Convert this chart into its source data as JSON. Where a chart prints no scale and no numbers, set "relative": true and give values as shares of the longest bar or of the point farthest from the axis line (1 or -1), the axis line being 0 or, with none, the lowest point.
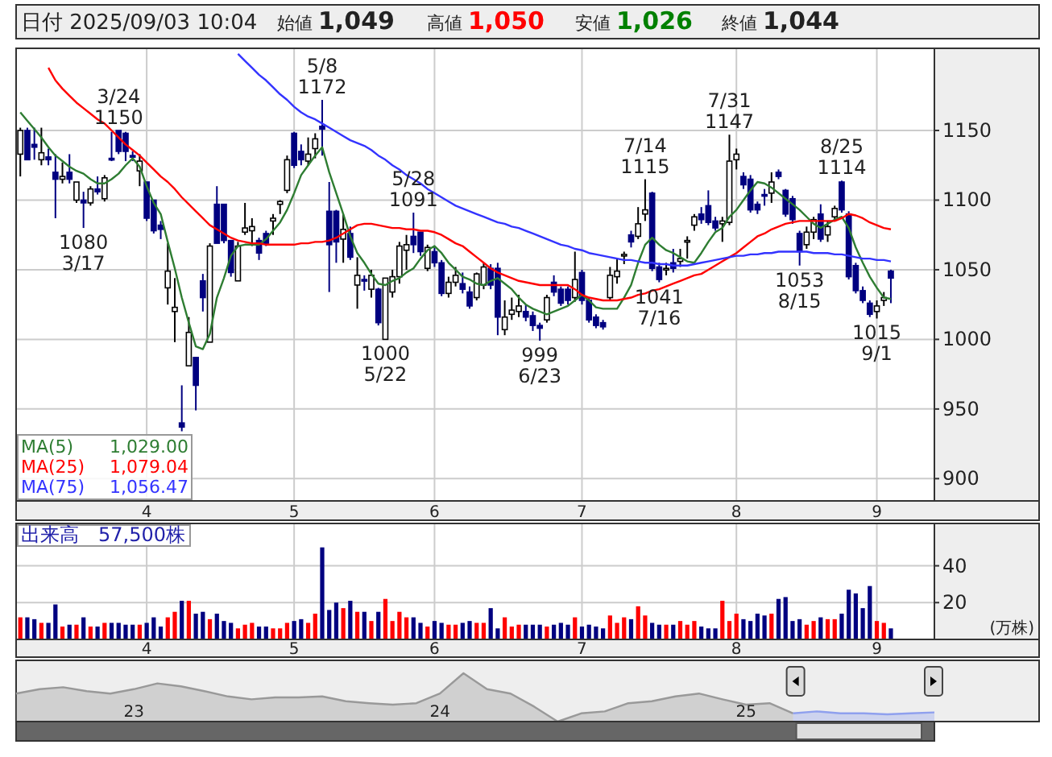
{
  "chart_data": [
    {
      "type": "candlestick",
      "title": "日付 2025/09/03 10:04",
      "grid": true,
      "legend": "bottom left",
      "ylim": [
        884,
        1209
      ],
      "yticks": [
        900,
        950,
        1000,
        1050,
        1100,
        1150
      ],
      "categories": [
        null,
        null,
        null,
        null,
        null,
        null,
        null,
        null,
        null,
        null,
        null,
        null,
        null,
        null,
        null,
        null,
        null,
        null,
        "4",
        null,
        null,
        null,
        null,
        null,
        null,
        null,
        null,
        null,
        null,
        null,
        null,
        null,
        null,
        null,
        null,
        null,
        null,
        null,
        null,
        "5",
        null,
        null,
        null,
        null,
        null,
        null,
        null,
        null,
        null,
        null,
        null,
        null,
        null,
        null,
        null,
        null,
        null,
        null,
        null,
        "6",
        null,
        null,
        null,
        null,
        null,
        null,
        null,
        null,
        null,
        null,
        null,
        null,
        null,
        null,
        null,
        null,
        null,
        null,
        null,
        null,
        "7",
        null,
        null,
        null,
        null,
        null,
        null,
        null,
        null,
        null,
        null,
        null,
        null,
        null,
        null,
        null,
        null,
        null,
        null,
        null,
        null,
        null,
        "8",
        null,
        null,
        null,
        null,
        null,
        null,
        null,
        null,
        null,
        null,
        null,
        null,
        null,
        null,
        null,
        null,
        null,
        null,
        null,
        "9",
        null,
        null
      ],
      "ohlc": [
        [
          1133,
          1152,
          1117,
          1150
        ],
        [
          1150,
          1152,
          1129,
          1129
        ],
        [
          1140,
          1152,
          1129,
          1138
        ],
        [
          1129,
          1152,
          1125,
          1134
        ],
        [
          1131,
          1137,
          1125,
          1129
        ],
        [
          1120,
          1133,
          1087,
          1115
        ],
        [
          1115,
          1127,
          1112,
          1117
        ],
        [
          1120,
          1133,
          1112,
          1115
        ],
        [
          1100,
          1113,
          1098,
          1113
        ],
        [
          1100,
          1106,
          1080,
          1098
        ],
        [
          1098,
          1110,
          1096,
          1108
        ],
        [
          1108,
          1117,
          1104,
          1106
        ],
        [
          1101,
          1118,
          1099,
          1116
        ],
        [
          1130,
          1149,
          1128,
          1129
        ],
        [
          1150,
          1150,
          1133,
          1135
        ],
        [
          1148,
          1149,
          1128,
          1135
        ],
        [
          1132,
          1135,
          1128,
          1131
        ],
        [
          1121,
          1133,
          1110,
          1128
        ],
        [
          1113,
          1113,
          1085,
          1087
        ],
        [
          1100,
          1100,
          1076,
          1078
        ],
        [
          1082,
          1085,
          1072,
          1079
        ],
        [
          1037,
          1069,
          1025,
          1049
        ],
        [
          1020,
          1044,
          998,
          1023
        ],
        [
          940,
          967,
          934,
          937
        ],
        [
          981,
          1016,
          981,
          1005
        ],
        [
          987,
          987,
          949,
          967
        ],
        [
          1042,
          1047,
          1020,
          1030
        ],
        [
          998,
          1069,
          998,
          1067
        ],
        [
          1097,
          1110,
          1069,
          1069
        ],
        [
          1097,
          1097,
          1069,
          1071
        ],
        [
          1071,
          1071,
          1045,
          1048
        ],
        [
          1042,
          1070,
          1042,
          1067
        ],
        [
          1077,
          1098,
          1075,
          1080
        ],
        [
          1078,
          1087,
          1067,
          1081
        ],
        [
          1071,
          1073,
          1057,
          1062
        ],
        [
          1076,
          1078,
          1067,
          1069
        ],
        [
          1085,
          1090,
          1075,
          1087
        ],
        [
          1097,
          1100,
          1090,
          1099
        ],
        [
          1107,
          1132,
          1105,
          1129
        ],
        [
          1148,
          1149,
          1123,
          1125
        ],
        [
          1135,
          1140,
          1125,
          1129
        ],
        [
          1128,
          1145,
          1125,
          1133
        ],
        [
          1137,
          1148,
          1130,
          1144
        ],
        [
          1153,
          1172,
          1132,
          1151
        ],
        [
          1092,
          1113,
          1034,
          1068
        ],
        [
          1092,
          1093,
          1055,
          1070
        ],
        [
          1072,
          1090,
          1055,
          1079
        ],
        [
          1076,
          1081,
          1057,
          1059
        ],
        [
          1039,
          1059,
          1022,
          1046
        ],
        [
          1043,
          1046,
          1035,
          1042
        ],
        [
          1036,
          1050,
          1030,
          1046
        ],
        [
          1036,
          1037,
          1010,
          1012
        ],
        [
          1000,
          1044,
          1000,
          1044
        ],
        [
          1034,
          1050,
          1030,
          1045
        ],
        [
          1045,
          1070,
          1040,
          1067
        ],
        [
          1064,
          1075,
          1050,
          1068
        ],
        [
          1074,
          1091,
          1062,
          1068
        ],
        [
          1077,
          1077,
          1060,
          1063
        ],
        [
          1051,
          1068,
          1049,
          1066
        ],
        [
          1063,
          1066,
          1052,
          1055
        ],
        [
          1055,
          1057,
          1031,
          1033
        ],
        [
          1033,
          1045,
          1030,
          1041
        ],
        [
          1041,
          1052,
          1038,
          1046
        ],
        [
          1040,
          1048,
          1033,
          1036
        ],
        [
          1034,
          1038,
          1022,
          1024
        ],
        [
          1030,
          1048,
          1028,
          1047
        ],
        [
          1039,
          1055,
          1036,
          1052
        ],
        [
          1051,
          1054,
          1036,
          1039
        ],
        [
          1051,
          1055,
          1003,
          1016
        ],
        [
          1007,
          1028,
          1003,
          1016
        ],
        [
          1018,
          1030,
          1014,
          1021
        ],
        [
          1020,
          1032,
          1016,
          1024
        ],
        [
          1020,
          1025,
          1013,
          1016
        ],
        [
          1017,
          1020,
          1006,
          1010
        ],
        [
          1010,
          1012,
          999,
          1008
        ],
        [
          1014,
          1032,
          1012,
          1030
        ],
        [
          1041,
          1046,
          1031,
          1034
        ],
        [
          1036,
          1038,
          1024,
          1026
        ],
        [
          1036,
          1038,
          1025,
          1028
        ],
        [
          1030,
          1063,
          1027,
          1043
        ],
        [
          1048,
          1050,
          1025,
          1028
        ],
        [
          1028,
          1030,
          1012,
          1014
        ],
        [
          1016,
          1018,
          1008,
          1010
        ],
        [
          1012,
          1014,
          1007,
          1009
        ],
        [
          1030,
          1052,
          1028,
          1046
        ],
        [
          1045,
          1058,
          1040,
          1049
        ],
        [
          1060,
          1063,
          1054,
          1061
        ],
        [
          1075,
          1078,
          1066,
          1070
        ],
        [
          1074,
          1095,
          1072,
          1083
        ],
        [
          1090,
          1115,
          1085,
          1093
        ],
        [
          1105,
          1106,
          1049,
          1051
        ],
        [
          1052,
          1055,
          1041,
          1043
        ],
        [
          1050,
          1055,
          1046,
          1051
        ],
        [
          1055,
          1065,
          1048,
          1051
        ],
        [
          1056,
          1065,
          1052,
          1058
        ],
        [
          1070,
          1074,
          1058,
          1071
        ],
        [
          1082,
          1090,
          1078,
          1088
        ],
        [
          1090,
          1095,
          1083,
          1086
        ],
        [
          1096,
          1107,
          1082,
          1084
        ],
        [
          1085,
          1088,
          1078,
          1080
        ],
        [
          1083,
          1088,
          1070,
          1085
        ],
        [
          1084,
          1147,
          1082,
          1128
        ],
        [
          1129,
          1137,
          1122,
          1133
        ],
        [
          1117,
          1120,
          1108,
          1111
        ],
        [
          1115,
          1118,
          1091,
          1093
        ],
        [
          1097,
          1099,
          1090,
          1093
        ],
        [
          1104,
          1108,
          1096,
          1103
        ],
        [
          1105,
          1120,
          1098,
          1113
        ],
        [
          1120,
          1122,
          1115,
          1117
        ],
        [
          1107,
          1108,
          1088,
          1090
        ],
        [
          1101,
          1103,
          1083,
          1086
        ],
        [
          1076,
          1078,
          1053,
          1063
        ],
        [
          1068,
          1081,
          1065,
          1077
        ],
        [
          1077,
          1088,
          1072,
          1086
        ],
        [
          1090,
          1097,
          1070,
          1072
        ],
        [
          1075,
          1085,
          1070,
          1081
        ],
        [
          1088,
          1096,
          1086,
          1094
        ],
        [
          1113,
          1114,
          1091,
          1093
        ],
        [
          1090,
          1092,
          1043,
          1045
        ],
        [
          1053,
          1055,
          1033,
          1035
        ],
        [
          1035,
          1038,
          1026,
          1028
        ],
        [
          1026,
          1028,
          1016,
          1018
        ],
        [
          1020,
          1028,
          1015,
          1024
        ],
        [
          1028,
          1034,
          1024,
          1030
        ],
        [
          1049,
          1050,
          1026,
          1044
        ]
      ],
      "colors": [
        "#ffffff",
        "#000080",
        "#000080",
        "#ffffff",
        "#000080",
        "#000080",
        "#ffffff",
        "#000080",
        "#ffffff",
        "#000080",
        "#ffffff",
        "#000080",
        "#ffffff",
        "#000080",
        "#000080",
        "#000080",
        "#000080",
        "#ffffff",
        "#000080",
        "#000080",
        "#000080",
        "#ffffff",
        "#ffffff",
        "#000080",
        "#ffffff",
        "#000080",
        "#000080",
        "#ffffff",
        "#000080",
        "#000080",
        "#000080",
        "#ffffff",
        "#ffffff",
        "#ffffff",
        "#000080",
        "#000080",
        "#ffffff",
        "#ffffff",
        "#ffffff",
        "#000080",
        "#000080",
        "#ffffff",
        "#ffffff",
        "#000080",
        "#000080",
        "#000080",
        "#ffffff",
        "#000080",
        "#ffffff",
        "#000080",
        "#ffffff",
        "#000080",
        "#ffffff",
        "#ffffff",
        "#ffffff",
        "#ffffff",
        "#000080",
        "#000080",
        "#ffffff",
        "#000080",
        "#000080",
        "#ffffff",
        "#ffffff",
        "#000080",
        "#000080",
        "#ffffff",
        "#ffffff",
        "#000080",
        "#000080",
        "#ffffff",
        "#ffffff",
        "#ffffff",
        "#000080",
        "#000080",
        "#000080",
        "#ffffff",
        "#000080",
        "#000080",
        "#000080",
        "#ffffff",
        "#000080",
        "#000080",
        "#000080",
        "#000080",
        "#ffffff",
        "#ffffff",
        "#ffffff",
        "#000080",
        "#ffffff",
        "#ffffff",
        "#000080",
        "#000080",
        "#ffffff",
        "#000080",
        "#ffffff",
        "#ffffff",
        "#ffffff",
        "#000080",
        "#000080",
        "#000080",
        "#ffffff",
        "#ffffff",
        "#ffffff",
        "#000080",
        "#000080",
        "#000080",
        "#000080",
        "#ffffff",
        "#000080",
        "#000080",
        "#000080",
        "#000080",
        "#ffffff",
        "#ffffff",
        "#000080",
        "#ffffff",
        "#ffffff",
        "#000080",
        "#000080",
        "#000080",
        "#000080",
        "#000080",
        "#ffffff",
        "#ffffff",
        "#000080"
      ],
      "series": [
        {
          "name": "MA(5)",
          "type": "line",
          "color": "#2e7d32",
          "values": [
            1163,
            1157,
            1151,
            1145,
            1138,
            1132,
            1128,
            1124,
            1121,
            1119,
            1115,
            1112,
            1112,
            1115,
            1119,
            1125,
            1130,
            1124,
            1110,
            1098,
            1090,
            1070,
            1051,
            1030,
            1012,
            995,
            993,
            1004,
            1030,
            1044,
            1060,
            1067,
            1068,
            1068,
            1068,
            1072,
            1078,
            1084,
            1093,
            1105,
            1118,
            1125,
            1132,
            1138,
            1120,
            1105,
            1090,
            1074,
            1062,
            1055,
            1047,
            1040,
            1039,
            1042,
            1044,
            1048,
            1051,
            1058,
            1064,
            1067,
            1062,
            1055,
            1050,
            1045,
            1043,
            1040,
            1039,
            1042,
            1044,
            1040,
            1036,
            1030,
            1025,
            1022,
            1020,
            1018,
            1020,
            1022,
            1024,
            1028,
            1032,
            1028,
            1023,
            1022,
            1022,
            1022,
            1030,
            1039,
            1055,
            1068,
            1073,
            1068,
            1064,
            1062,
            1059,
            1056,
            1055,
            1062,
            1070,
            1077,
            1080,
            1088,
            1093,
            1100,
            1107,
            1113,
            1112,
            1109,
            1105,
            1101,
            1097,
            1093,
            1088,
            1083,
            1080,
            1083,
            1086,
            1088,
            1080,
            1066,
            1055,
            1045,
            1037,
            1030,
            1029
          ]
        },
        {
          "name": "MA(25)",
          "type": "line",
          "color": "#ff0000",
          "values": [
            null,
            null,
            null,
            null,
            1195,
            1186,
            1180,
            1175,
            1170,
            1166,
            1162,
            1158,
            1155,
            1150,
            1145,
            1140,
            1136,
            1132,
            1127,
            1122,
            1117,
            1113,
            1108,
            1102,
            1097,
            1092,
            1087,
            1082,
            1079,
            1076,
            1073,
            1071,
            1070,
            1069,
            1069,
            1068,
            1068,
            1068,
            1068,
            1068,
            1069,
            1069,
            1070,
            1070,
            1071,
            1073,
            1076,
            1079,
            1082,
            1083,
            1083,
            1082,
            1081,
            1080,
            1080,
            1079,
            1079,
            1078,
            1078,
            1077,
            1075,
            1072,
            1069,
            1067,
            1063,
            1059,
            1055,
            1051,
            1048,
            1046,
            1044,
            1042,
            1041,
            1040,
            1039,
            1039,
            1039,
            1039,
            1039,
            1036,
            1032,
            1030,
            1029,
            1028,
            1028,
            1028,
            1029,
            1030,
            1032,
            1033,
            1035,
            1036,
            1038,
            1040,
            1042,
            1044,
            1046,
            1047,
            1050,
            1053,
            1056,
            1059,
            1062,
            1066,
            1070,
            1074,
            1076,
            1079,
            1081,
            1083,
            1084,
            1085,
            1085,
            1085,
            1085,
            1085,
            1085,
            1087,
            1090,
            1089,
            1087,
            1084,
            1082,
            1080,
            1079
          ]
        },
        {
          "name": "MA(75)",
          "type": "line",
          "color": "#3333ff",
          "values": [
            null,
            null,
            null,
            null,
            null,
            null,
            null,
            null,
            null,
            null,
            null,
            null,
            null,
            null,
            null,
            null,
            null,
            null,
            null,
            null,
            null,
            null,
            null,
            null,
            null,
            null,
            null,
            null,
            null,
            null,
            null,
            1205,
            1200,
            1195,
            1190,
            1186,
            1181,
            1176,
            1172,
            1167,
            1163,
            1160,
            1158,
            1155,
            1152,
            1149,
            1146,
            1143,
            1141,
            1139,
            1136,
            1132,
            1129,
            1125,
            1122,
            1118,
            1115,
            1112,
            1108,
            1105,
            1102,
            1099,
            1096,
            1094,
            1092,
            1090,
            1088,
            1086,
            1084,
            1083,
            1081,
            1080,
            1078,
            1076,
            1074,
            1072,
            1070,
            1068,
            1067,
            1065,
            1064,
            1062,
            1061,
            1060,
            1059,
            1058,
            1057,
            1057,
            1056,
            1055,
            1055,
            1054,
            1054,
            1053,
            1053,
            1053,
            1054,
            1055,
            1056,
            1057,
            1058,
            1059,
            1060,
            1060,
            1061,
            1061,
            1062,
            1062,
            1063,
            1063,
            1063,
            1063,
            1063,
            1062,
            1062,
            1062,
            1061,
            1061,
            1060,
            1059,
            1058,
            1058,
            1057,
            1057,
            1056
          ]
        }
      ],
      "annotations": [
        "始値 1,049",
        "高値 1,050",
        "安値 1,026",
        "終値 1,044",
        "1,029.00",
        "1,079.04",
        "1,056.47",
        {
          "text": "3/24\n1150",
          "y": 1150
        },
        {
          "text": "1080\n3/17",
          "y": 1080
        },
        {
          "text": "5/8\n1172",
          "y": 1172
        },
        {
          "text": "5/28\n1091",
          "y": 1091
        },
        {
          "text": "1000\n5/22",
          "y": 1000
        },
        {
          "text": "999\n6/23",
          "y": 999
        },
        {
          "text": "7/14\n1115",
          "y": 1115
        },
        {
          "text": "1041\n7/16",
          "y": 1041
        },
        {
          "text": "7/31\n1147",
          "y": 1147
        },
        {
          "text": "1053\n8/15",
          "y": 1053
        },
        {
          "text": "8/25\n1114",
          "y": 1114
        },
        {
          "text": "1015\n9/1",
          "y": 1015
        }
      ]
    },
    {
      "type": "bar",
      "title": "出来高　57,500株",
      "ylabel": "(万株)",
      "grid": true,
      "ylim": [
        0,
        63
      ],
      "yticks": [
        20,
        40
      ],
      "categories": [
        null,
        null,
        null,
        null,
        null,
        null,
        null,
        null,
        null,
        null,
        null,
        null,
        null,
        null,
        null,
        null,
        null,
        null,
        "4",
        null,
        null,
        null,
        null,
        null,
        null,
        null,
        null,
        null,
        null,
        null,
        null,
        null,
        null,
        null,
        null,
        null,
        null,
        null,
        null,
        "5",
        null,
        null,
        null,
        null,
        null,
        null,
        null,
        null,
        null,
        null,
        null,
        null,
        null,
        null,
        null,
        null,
        null,
        null,
        null,
        "6",
        null,
        null,
        null,
        null,
        null,
        null,
        null,
        null,
        null,
        null,
        null,
        null,
        null,
        null,
        null,
        null,
        null,
        null,
        null,
        null,
        "7",
        null,
        null,
        null,
        null,
        null,
        null,
        null,
        null,
        null,
        null,
        null,
        null,
        null,
        null,
        null,
        null,
        null,
        null,
        null,
        null,
        null,
        "8",
        null,
        null,
        null,
        null,
        null,
        null,
        null,
        null,
        null,
        null,
        null,
        null,
        null,
        null,
        null,
        null,
        null,
        null,
        null,
        "9",
        null,
        null
      ],
      "values": [
        12,
        12,
        11,
        9,
        9,
        19,
        7,
        8,
        8,
        12,
        7,
        7,
        9,
        9,
        9,
        8,
        8,
        8,
        9,
        12,
        7,
        12,
        15,
        21,
        21,
        14,
        15,
        11,
        14,
        10,
        9,
        6,
        8,
        9,
        7,
        7,
        6,
        6,
        9,
        10,
        11,
        9,
        14,
        50,
        16,
        20,
        17,
        21,
        15,
        15,
        10,
        15,
        22,
        10,
        15,
        12,
        12,
        9,
        7,
        10,
        9,
        8,
        8,
        9,
        10,
        9,
        9,
        17,
        6,
        12,
        7,
        8,
        8,
        8,
        8,
        7,
        8,
        9,
        8,
        12,
        7,
        8,
        7,
        6,
        13,
        9,
        12,
        11,
        18,
        13,
        9,
        8,
        8,
        8,
        10,
        8,
        10,
        7,
        6,
        6,
        21,
        10,
        14,
        11,
        10,
        14,
        13,
        14,
        22,
        23,
        10,
        11,
        8,
        10,
        12,
        11,
        11,
        14,
        27,
        25,
        17,
        29,
        10,
        9,
        6
      ],
      "colors": [
        "#ff0000",
        "#000080",
        "#000080",
        "#ff0000",
        "#000080",
        "#000080",
        "#ff0000",
        "#000080",
        "#ff0000",
        "#000080",
        "#ff0000",
        "#000080",
        "#ff0000",
        "#000080",
        "#000080",
        "#000080",
        "#000080",
        "#ff0000",
        "#000080",
        "#000080",
        "#000080",
        "#ff0000",
        "#ff0000",
        "#000080",
        "#ff0000",
        "#000080",
        "#000080",
        "#ff0000",
        "#000080",
        "#000080",
        "#000080",
        "#ff0000",
        "#ff0000",
        "#ff0000",
        "#000080",
        "#000080",
        "#ff0000",
        "#ff0000",
        "#ff0000",
        "#000080",
        "#000080",
        "#ff0000",
        "#ff0000",
        "#000080",
        "#000080",
        "#000080",
        "#ff0000",
        "#000080",
        "#ff0000",
        "#000080",
        "#ff0000",
        "#000080",
        "#ff0000",
        "#ff0000",
        "#ff0000",
        "#ff0000",
        "#000080",
        "#000080",
        "#ff0000",
        "#000080",
        "#000080",
        "#ff0000",
        "#ff0000",
        "#000080",
        "#000080",
        "#ff0000",
        "#ff0000",
        "#000080",
        "#000080",
        "#ff0000",
        "#ff0000",
        "#ff0000",
        "#000080",
        "#000080",
        "#000080",
        "#ff0000",
        "#000080",
        "#000080",
        "#000080",
        "#ff0000",
        "#000080",
        "#000080",
        "#000080",
        "#000080",
        "#ff0000",
        "#ff0000",
        "#ff0000",
        "#000080",
        "#ff0000",
        "#ff0000",
        "#000080",
        "#000080",
        "#ff0000",
        "#000080",
        "#ff0000",
        "#ff0000",
        "#ff0000",
        "#000080",
        "#000080",
        "#000080",
        "#ff0000",
        "#ff0000",
        "#ff0000",
        "#000080",
        "#000080",
        "#000080",
        "#000080",
        "#ff0000",
        "#000080",
        "#000080",
        "#000080",
        "#000080",
        "#ff0000",
        "#ff0000",
        "#000080",
        "#ff0000",
        "#ff0000",
        "#000080",
        "#000080",
        "#000080",
        "#000080",
        "#000080",
        "#ff0000",
        "#ff0000",
        "#000080"
      ]
    },
    {
      "type": "area",
      "relative": true,
      "categories": [
        null,
        null,
        null,
        null,
        null,
        "23",
        null,
        null,
        null,
        null,
        null,
        null,
        null,
        null,
        null,
        null,
        null,
        null,
        "24",
        null,
        null,
        null,
        null,
        null,
        null,
        null,
        null,
        null,
        null,
        null,
        null,
        "25",
        null,
        null,
        null,
        null,
        null,
        null,
        null,
        null
      ],
      "series": [
        {
          "color": "#999999",
          "values": [
            0.58,
            0.67,
            0.71,
            0.63,
            0.58,
            0.67,
            0.79,
            0.73,
            0.63,
            0.52,
            0.46,
            0.5,
            0.5,
            0.52,
            0.42,
            0.38,
            0.35,
            0.38,
            0.58,
            1,
            0.67,
            0.58,
            0.31,
            0,
            0.17,
            0.21,
            0.38,
            0.42,
            0.52,
            0.58,
            0.46,
            0.35,
            0.38,
            0.17,
            null,
            null,
            null,
            null,
            null,
            null
          ]
        },
        {
          "color": "#8fa0ee",
          "values": [
            null,
            null,
            null,
            null,
            null,
            null,
            null,
            null,
            null,
            null,
            null,
            null,
            null,
            null,
            null,
            null,
            null,
            null,
            null,
            null,
            null,
            null,
            null,
            null,
            null,
            null,
            null,
            null,
            null,
            null,
            null,
            null,
            null,
            0.17,
            0.21,
            0.17,
            0.17,
            0.15,
            0.17,
            0.19
          ]
        }
      ]
    }
  ]
}
